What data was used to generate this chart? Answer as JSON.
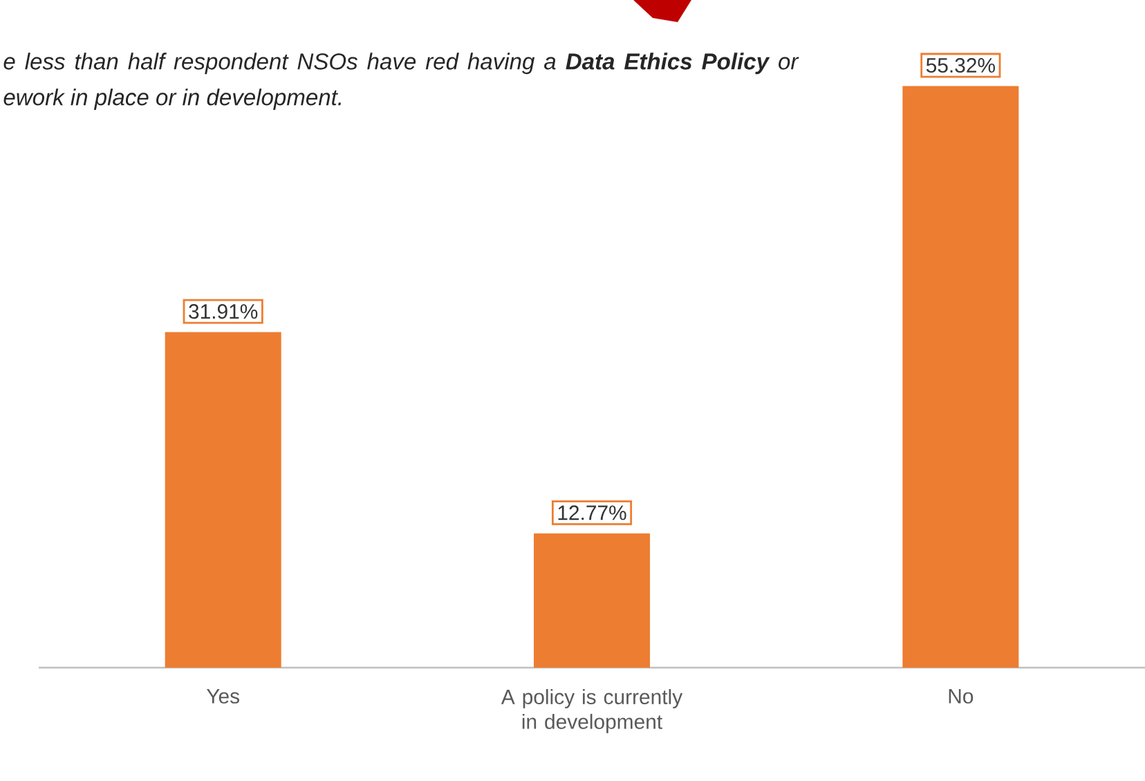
{
  "chart_data": {
    "type": "bar",
    "categories": [
      "Yes",
      "A policy is currently in development",
      "No"
    ],
    "values": [
      31.91,
      12.77,
      55.32
    ],
    "value_labels": [
      "31.91%",
      "12.77%",
      "55.32%"
    ],
    "color": "#ed7d31",
    "tick_labels": "x",
    "annotations": [
      "e less than half respondent NSOs have red having a **Data Ethics Policy** or ework in place or in development."
    ]
  }
}
